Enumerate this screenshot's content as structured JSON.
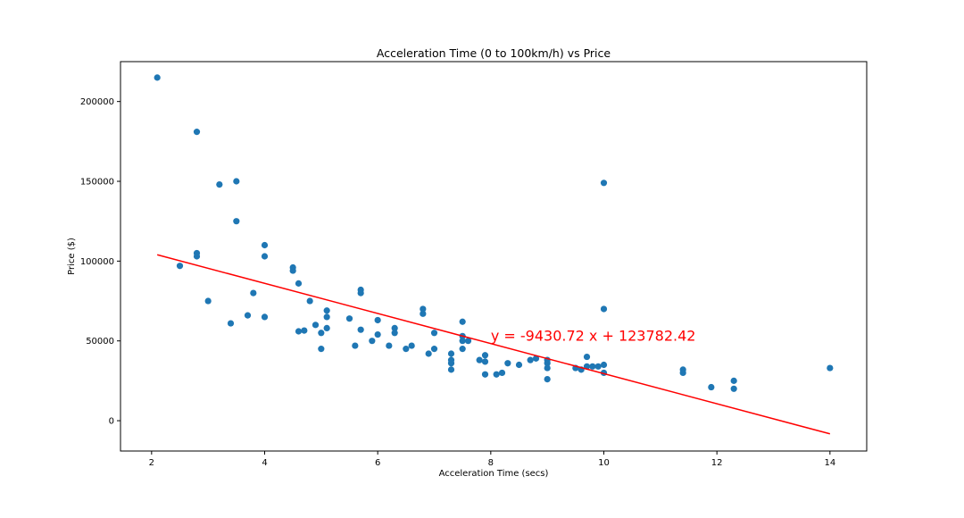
{
  "chart_data": {
    "type": "scatter",
    "title": "Acceleration Time (0 to 100km/h) vs Price",
    "xlabel": "Acceleration Time (secs)",
    "ylabel": "Price ($)",
    "xlim": [
      1.45,
      14.65
    ],
    "ylim": [
      -19000,
      225000
    ],
    "xticks": [
      2,
      4,
      6,
      8,
      10,
      12,
      14
    ],
    "yticks": [
      0,
      50000,
      100000,
      150000,
      200000
    ],
    "grid": false,
    "point_color": "#1f77b4",
    "series": [
      {
        "points": [
          [
            2.1,
            215000
          ],
          [
            2.5,
            97000
          ],
          [
            2.8,
            181000
          ],
          [
            2.8,
            105000
          ],
          [
            2.8,
            103000
          ],
          [
            3.0,
            75000
          ],
          [
            3.2,
            148000
          ],
          [
            3.4,
            61000
          ],
          [
            3.5,
            150000
          ],
          [
            3.5,
            125000
          ],
          [
            3.7,
            66000
          ],
          [
            3.8,
            80000
          ],
          [
            4.0,
            110000
          ],
          [
            4.0,
            103000
          ],
          [
            4.0,
            65000
          ],
          [
            4.5,
            96000
          ],
          [
            4.5,
            94000
          ],
          [
            4.6,
            86000
          ],
          [
            4.6,
            56000
          ],
          [
            4.7,
            56500
          ],
          [
            4.8,
            75000
          ],
          [
            4.9,
            60000
          ],
          [
            5.0,
            55000
          ],
          [
            5.0,
            45000
          ],
          [
            5.1,
            69000
          ],
          [
            5.1,
            65000
          ],
          [
            5.1,
            58000
          ],
          [
            5.5,
            64000
          ],
          [
            5.6,
            47000
          ],
          [
            5.7,
            82000
          ],
          [
            5.7,
            80000
          ],
          [
            5.7,
            57000
          ],
          [
            5.9,
            50000
          ],
          [
            6.0,
            63000
          ],
          [
            6.0,
            54000
          ],
          [
            6.2,
            47000
          ],
          [
            6.3,
            58000
          ],
          [
            6.3,
            55000
          ],
          [
            6.5,
            45000
          ],
          [
            6.6,
            47000
          ],
          [
            6.8,
            70000
          ],
          [
            6.8,
            67000
          ],
          [
            6.9,
            42000
          ],
          [
            7.0,
            55000
          ],
          [
            7.0,
            45000
          ],
          [
            7.3,
            42000
          ],
          [
            7.3,
            38000
          ],
          [
            7.3,
            36000
          ],
          [
            7.3,
            32000
          ],
          [
            7.5,
            62000
          ],
          [
            7.5,
            53000
          ],
          [
            7.5,
            50000
          ],
          [
            7.5,
            45000
          ],
          [
            7.6,
            50000
          ],
          [
            7.8,
            38000
          ],
          [
            7.9,
            41000
          ],
          [
            7.9,
            37000
          ],
          [
            7.9,
            29000
          ],
          [
            8.1,
            29000
          ],
          [
            8.2,
            30000
          ],
          [
            8.3,
            36000
          ],
          [
            8.5,
            35000
          ],
          [
            8.7,
            38000
          ],
          [
            8.8,
            39000
          ],
          [
            9.0,
            38000
          ],
          [
            9.0,
            36000
          ],
          [
            9.0,
            33000
          ],
          [
            9.0,
            26000
          ],
          [
            9.5,
            33000
          ],
          [
            9.6,
            32000
          ],
          [
            9.7,
            40000
          ],
          [
            9.7,
            34000
          ],
          [
            9.8,
            34000
          ],
          [
            9.9,
            34000
          ],
          [
            10.0,
            149000
          ],
          [
            10.0,
            70000
          ],
          [
            10.0,
            35000
          ],
          [
            10.0,
            30000
          ],
          [
            11.4,
            32000
          ],
          [
            11.4,
            30000
          ],
          [
            11.9,
            21000
          ],
          [
            12.3,
            25000
          ],
          [
            12.3,
            20000
          ],
          [
            14.0,
            33000
          ]
        ]
      }
    ],
    "regression": {
      "slope": -9430.72,
      "intercept": 123782.42,
      "x_range": [
        2.1,
        14.0
      ],
      "color": "#ff0000",
      "equation_label": "y = -9430.72 x + 123782.42",
      "label_x": 8.0,
      "label_y": 50000,
      "label_color": "#ff0000"
    }
  }
}
